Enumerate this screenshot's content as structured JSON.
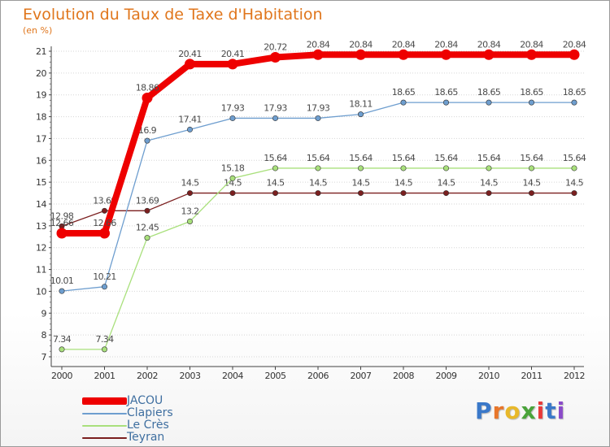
{
  "chart_data": {
    "type": "line",
    "title": "Evolution du Taux de Taxe d'Habitation",
    "ylabel": "(en %)",
    "xlabel": "",
    "categories": [
      "2000",
      "2001",
      "2002",
      "2003",
      "2004",
      "2005",
      "2006",
      "2007",
      "2008",
      "2009",
      "2010",
      "2011",
      "2012"
    ],
    "ylim": [
      7,
      21
    ],
    "yticks": [
      "7",
      "8",
      "9",
      "10",
      "11",
      "12",
      "13",
      "14",
      "15",
      "16",
      "17",
      "18",
      "19",
      "20",
      "21"
    ],
    "series": [
      {
        "name": "Teyran",
        "color": "#7b1f1f",
        "values": [
          12.98,
          13.69,
          13.69,
          14.5,
          14.5,
          14.5,
          14.5,
          14.5,
          14.5,
          14.5,
          14.5,
          14.5,
          14.5
        ],
        "labels": [
          "12.98",
          "13.69",
          "13.69",
          "14.5",
          "14.5",
          "14.5",
          "14.5",
          "14.5",
          "14.5",
          "14.5",
          "14.5",
          "14.5",
          "14.5"
        ]
      },
      {
        "name": "Le Crès",
        "color": "#a9e07c",
        "values": [
          7.34,
          7.34,
          12.45,
          13.2,
          15.18,
          15.64,
          15.64,
          15.64,
          15.64,
          15.64,
          15.64,
          15.64,
          15.64
        ],
        "labels": [
          "7.34",
          "7.34",
          "12.45",
          "13.2",
          "15.18",
          "15.64",
          "15.64",
          "15.64",
          "15.64",
          "15.64",
          "15.64",
          "15.64",
          "15.64"
        ]
      },
      {
        "name": "Clapiers",
        "color": "#6e9ecf",
        "values": [
          10.01,
          10.21,
          16.9,
          17.41,
          17.93,
          17.93,
          17.93,
          18.11,
          18.65,
          18.65,
          18.65,
          18.65,
          18.65
        ],
        "labels": [
          "10.01",
          "10.21",
          "16.9",
          "17.41",
          "17.93",
          "17.93",
          "17.93",
          "18.11",
          "18.65",
          "18.65",
          "18.65",
          "18.65",
          "18.65"
        ]
      },
      {
        "name": "JACOU",
        "color": "#ee0000",
        "values": [
          12.66,
          12.66,
          18.86,
          20.41,
          20.41,
          20.72,
          20.84,
          20.84,
          20.84,
          20.84,
          20.84,
          20.84,
          20.84
        ],
        "labels": [
          "12.66",
          "12.66",
          "18.86",
          "20.41",
          "20.41",
          "20.72",
          "20.84",
          "20.84",
          "20.84",
          "20.84",
          "20.84",
          "20.84",
          "20.84"
        ]
      }
    ]
  },
  "legend": {
    "items": [
      {
        "name": "JACOU",
        "color": "#ee0000"
      },
      {
        "name": "Clapiers",
        "color": "#6e9ecf"
      },
      {
        "name": "Le Crès",
        "color": "#a9e07c"
      },
      {
        "name": "Teyran",
        "color": "#7b1f1f"
      }
    ]
  },
  "logo": {
    "letters": [
      "P",
      "r",
      "o",
      "x",
      "i",
      "t",
      "i"
    ],
    "colors": [
      "#3a78c9",
      "#e8762a",
      "#e8b82a",
      "#4aa33a",
      "#e83a3a",
      "#3a78c9",
      "#8a4ac9"
    ]
  }
}
